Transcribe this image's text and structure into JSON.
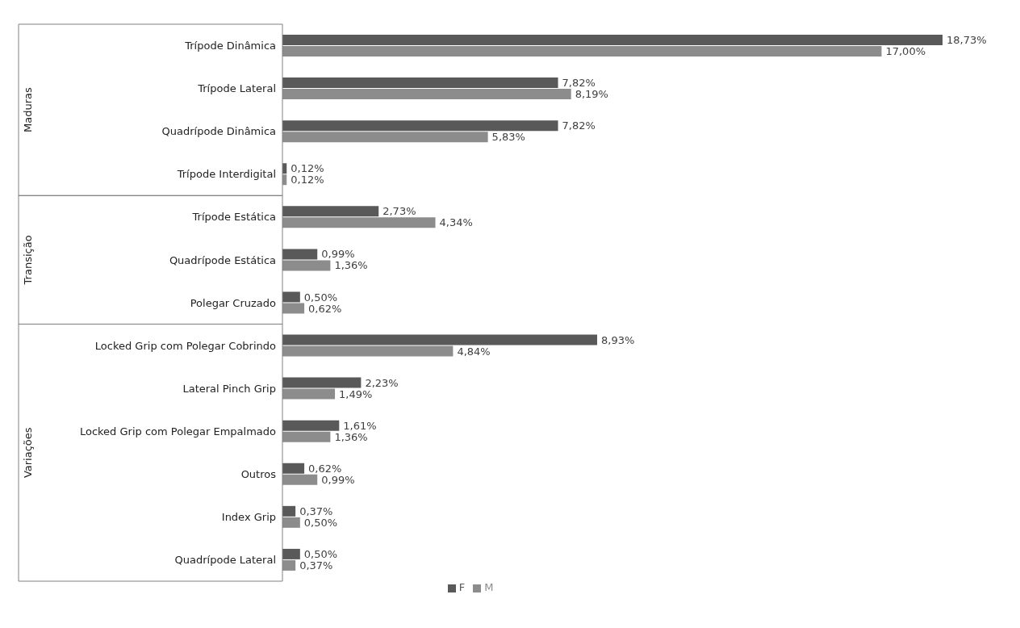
{
  "chart_data": {
    "type": "bar",
    "orientation": "horizontal",
    "categories": [
      "Trípode Dinâmica",
      "Trípode Lateral",
      "Quadrípode Dinâmica",
      "Trípode Interdigital",
      "Trípode Estática",
      "Quadrípode Estática",
      "Polegar Cruzado",
      "Locked Grip com Polegar Cobrindo",
      "Lateral Pinch Grip",
      "Locked Grip com Polegar Empalmado",
      "Outros",
      "Index Grip",
      "Quadrípode Lateral"
    ],
    "series": [
      {
        "name": "F",
        "color": "#595959",
        "values": [
          18.73,
          7.82,
          7.82,
          0.12,
          2.73,
          0.99,
          0.5,
          8.93,
          2.23,
          1.61,
          0.62,
          0.37,
          0.5
        ],
        "value_labels": [
          "18,73%",
          "7,82%",
          "7,82%",
          "0,12%",
          "2,73%",
          "0,99%",
          "0,50%",
          "8,93%",
          "2,23%",
          "1,61%",
          "0,62%",
          "0,37%",
          "0,50%"
        ]
      },
      {
        "name": "M",
        "color": "#8c8c8c",
        "values": [
          17.0,
          8.19,
          5.83,
          0.12,
          4.34,
          1.36,
          0.62,
          4.84,
          1.49,
          1.36,
          0.99,
          0.5,
          0.37
        ],
        "value_labels": [
          "17,00%",
          "8,19%",
          "5,83%",
          "0,12%",
          "4,34%",
          "1,36%",
          "0,62%",
          "4,84%",
          "1,49%",
          "1,36%",
          "0,99%",
          "0,50%",
          "0,37%"
        ]
      }
    ],
    "annotations": [
      "Maduras",
      "Transição",
      "Variações"
    ],
    "legend": "bottom"
  }
}
